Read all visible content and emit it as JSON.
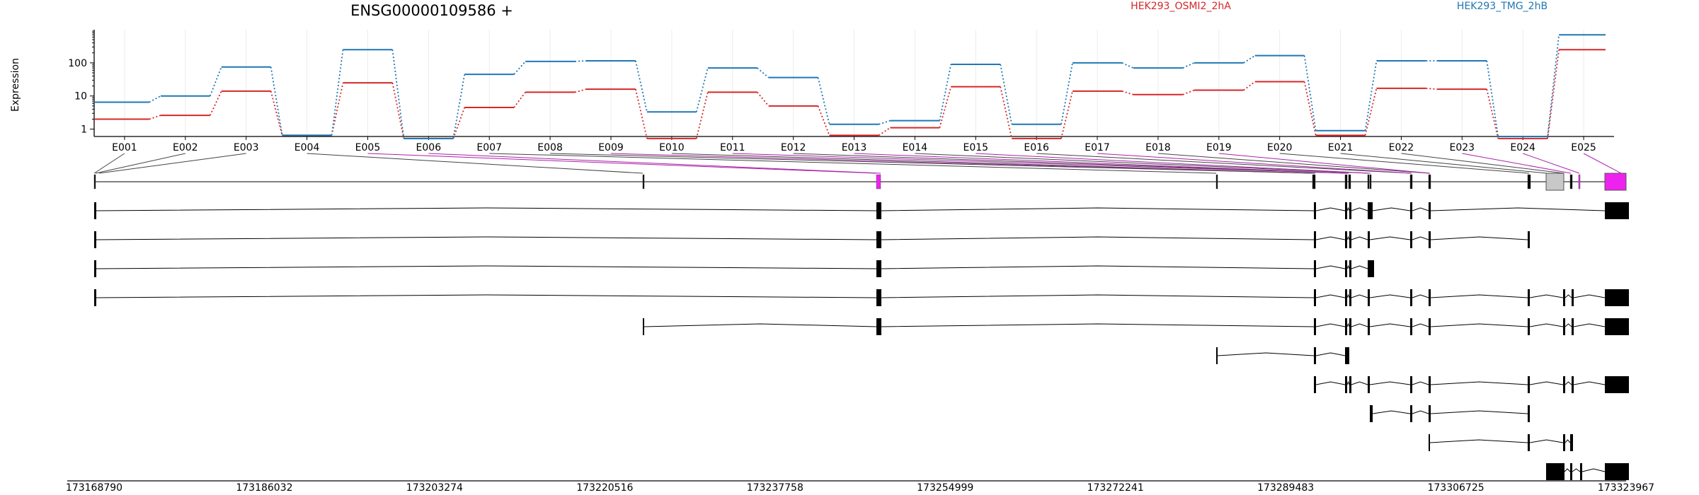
{
  "gene_title": "ENSG00000109586 +",
  "legend": [
    {
      "label": "HEK293_OSMI2_2hA",
      "color": "#d62728"
    },
    {
      "label": "HEK293_TMG_2hB",
      "color": "#1f77b4"
    }
  ],
  "chart_data": {
    "type": "line",
    "title": "ENSG00000109586 +",
    "ylabel": "Expression",
    "yscale": "log",
    "ylim": [
      0.6,
      1000
    ],
    "yticks": [
      "1",
      "10",
      "100"
    ],
    "grid": "vertical",
    "categories": [
      "E001",
      "E002",
      "E003",
      "E004",
      "E005",
      "E006",
      "E007",
      "E008",
      "E009",
      "E010",
      "E011",
      "E012",
      "E013",
      "E014",
      "E015",
      "E016",
      "E017",
      "E018",
      "E019",
      "E020",
      "E021",
      "E022",
      "E023",
      "E024",
      "E025"
    ],
    "series": [
      {
        "name": "HEK293_OSMI2_2hA",
        "color": "#d62728",
        "values": [
          2,
          2.6,
          14,
          0.65,
          25,
          0.52,
          4.5,
          13,
          16,
          0.52,
          13,
          5,
          0.65,
          1.1,
          19,
          0.52,
          14,
          11,
          15,
          27,
          0.65,
          17,
          16,
          0.52,
          250
        ]
      },
      {
        "name": "HEK293_TMG_2hB",
        "color": "#1f77b4",
        "values": [
          6.5,
          10,
          75,
          0.65,
          250,
          0.52,
          45,
          110,
          115,
          3.3,
          70,
          36,
          1.4,
          1.8,
          90,
          1.4,
          100,
          70,
          100,
          165,
          0.9,
          115,
          115,
          0.6,
          700
        ]
      }
    ]
  },
  "genome_axis": {
    "ticks": [
      "173168790",
      "173186032",
      "173203274",
      "173220516",
      "173237758",
      "173254999",
      "173272241",
      "173289483",
      "173306725",
      "173323967"
    ]
  }
}
